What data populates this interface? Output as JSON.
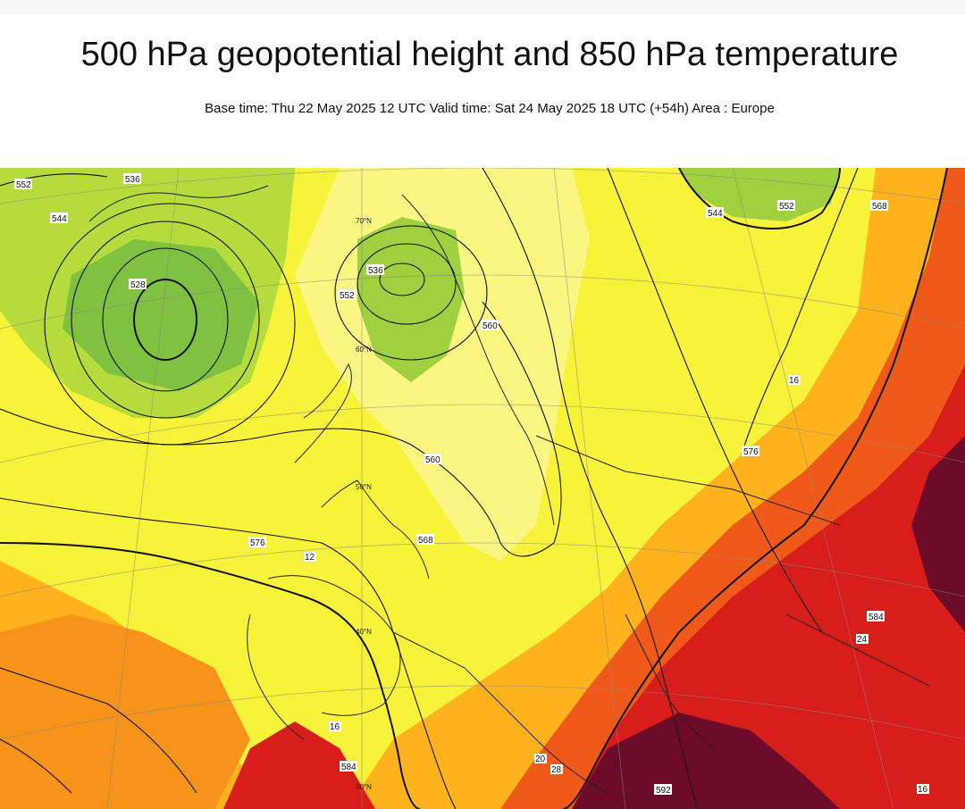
{
  "header": {
    "title": "500 hPa geopotential height and 850 hPa temperature",
    "subtitle": "Base time: Thu 22 May 2025 12 UTC Valid time: Sat 24 May 2025 18 UTC (+54h) Area : Europe"
  },
  "map": {
    "area": "Europe",
    "height_contour_labels": [
      "536",
      "544",
      "552",
      "560",
      "576",
      "584",
      "528",
      "536",
      "552",
      "560",
      "568",
      "576",
      "584",
      "592",
      "544",
      "552",
      "568"
    ],
    "temperature_labels": [
      "16",
      "12",
      "20",
      "28",
      "16",
      "24",
      "16"
    ],
    "latitude_labels": [
      "70°N",
      "60°N",
      "50°N",
      "40°N",
      "30°N"
    ],
    "colors": {
      "cold_green": "#7fc241",
      "light_green": "#b5dc3c",
      "yellow": "#f7f23a",
      "pale_yellow": "#fbf582",
      "orange": "#fdb21e",
      "dark_orange": "#f6931b",
      "red_orange": "#ef5a1a",
      "red": "#d81e1a",
      "dark_red": "#6d0b2b",
      "contour": "#111111"
    }
  }
}
